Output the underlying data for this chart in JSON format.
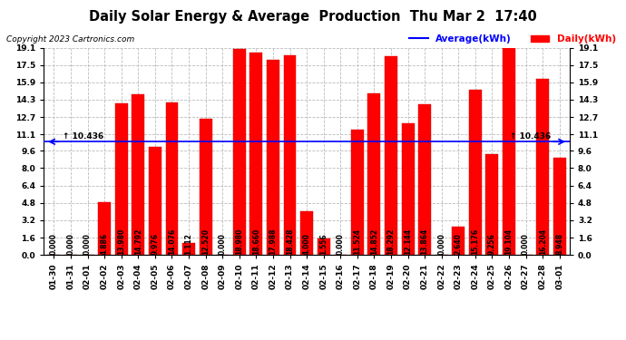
{
  "title": "Daily Solar Energy & Average  Production  Thu Mar 2  17:40",
  "copyright": "Copyright 2023 Cartronics.com",
  "legend_average": "Average(kWh)",
  "legend_daily": "Daily(kWh)",
  "average_value": 10.436,
  "categories": [
    "01-30",
    "01-31",
    "02-01",
    "02-02",
    "02-03",
    "02-04",
    "02-05",
    "02-06",
    "02-07",
    "02-08",
    "02-09",
    "02-10",
    "02-11",
    "02-12",
    "02-13",
    "02-14",
    "02-15",
    "02-16",
    "02-17",
    "02-18",
    "02-19",
    "02-20",
    "02-21",
    "02-22",
    "02-23",
    "02-24",
    "02-25",
    "02-26",
    "02-27",
    "02-28",
    "03-01"
  ],
  "values": [
    0.0,
    0.0,
    0.0,
    4.886,
    13.98,
    14.792,
    9.976,
    14.076,
    1.112,
    12.52,
    0.0,
    18.98,
    18.66,
    17.988,
    18.428,
    4.0,
    1.556,
    0.0,
    11.524,
    14.852,
    18.292,
    12.144,
    13.864,
    0.0,
    2.64,
    15.176,
    9.256,
    19.104,
    0.0,
    16.204,
    8.948
  ],
  "bar_color": "#ff0000",
  "bar_edge_color": "#cc0000",
  "average_line_color": "#0000ff",
  "average_annotation_color": "#000000",
  "background_color": "#ffffff",
  "grid_color": "#bbbbbb",
  "title_color": "#000000",
  "copyright_color": "#000000",
  "ylim": [
    0.0,
    19.1
  ],
  "yticks": [
    0.0,
    1.6,
    3.2,
    4.8,
    6.4,
    8.0,
    9.6,
    11.1,
    12.7,
    14.3,
    15.9,
    17.5,
    19.1
  ],
  "title_fontsize": 10.5,
  "tick_fontsize": 6.5,
  "bar_label_fontsize": 5.5,
  "avg_annotation_fontsize": 6.5,
  "copyright_fontsize": 6.5,
  "legend_fontsize": 7.5
}
